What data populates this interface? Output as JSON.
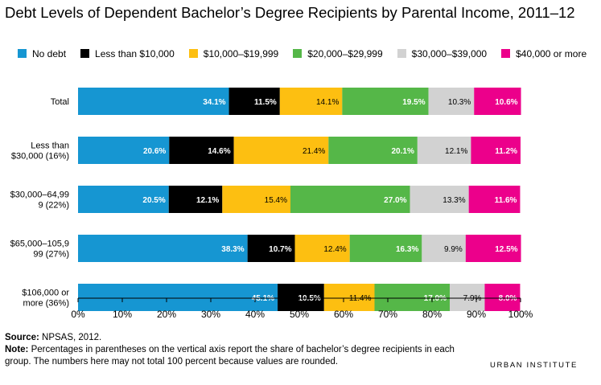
{
  "chart_data": {
    "type": "bar",
    "orientation": "horizontal",
    "stacked": true,
    "title": "Debt Levels of Dependent Bachelor’s Degree Recipients by Parental Income, 2011–12",
    "xlim": [
      0,
      100
    ],
    "x_ticks": [
      "0%",
      "10%",
      "20%",
      "30%",
      "40%",
      "50%",
      "60%",
      "70%",
      "80%",
      "90%",
      "100%"
    ],
    "legend_position": "top",
    "grid": false,
    "categories": [
      [
        "Total"
      ],
      [
        "Less than",
        "$30,000 (16%)"
      ],
      [
        "$30,000–64,99",
        "9 (22%)"
      ],
      [
        "$65,000–105,9",
        "99 (27%)"
      ],
      [
        "$106,000 or",
        "more (36%)"
      ]
    ],
    "series": [
      {
        "name": "No debt",
        "color": "#1696d2",
        "values": [
          34.1,
          20.6,
          20.5,
          38.3,
          45.1
        ],
        "labels": [
          "34.1%",
          "20.6%",
          "20.5%",
          "38.3%",
          "45.1%"
        ],
        "label_color": "#ffffff"
      },
      {
        "name": "Less than $10,000",
        "color": "#000000",
        "values": [
          11.5,
          14.6,
          12.1,
          10.7,
          10.5
        ],
        "labels": [
          "11.5%",
          "14.6%",
          "12.1%",
          "10.7%",
          "10.5%"
        ],
        "label_color": "#ffffff"
      },
      {
        "name": "$10,000–$19,999",
        "color": "#fdbf11",
        "values": [
          14.1,
          21.4,
          15.4,
          12.4,
          11.4
        ],
        "labels": [
          "14.1%",
          "21.4%",
          "15.4%",
          "12.4%",
          "11.4%"
        ],
        "label_color": "#000000"
      },
      {
        "name": "$20,000–$29,999",
        "color": "#55b748",
        "values": [
          19.5,
          20.1,
          27.0,
          16.3,
          17.0
        ],
        "labels": [
          "19.5%",
          "20.1%",
          "27.0%",
          "16.3%",
          "17.0%"
        ],
        "label_color": "#ffffff"
      },
      {
        "name": "$30,000–$39,000",
        "color": "#d2d2d2",
        "values": [
          10.3,
          12.1,
          13.3,
          9.9,
          7.9
        ],
        "labels": [
          "10.3%",
          "12.1%",
          "13.3%",
          "9.9%",
          "7.9%"
        ],
        "label_color": "#000000"
      },
      {
        "name": "$40,000 or more",
        "color": "#ec008b",
        "values": [
          10.6,
          11.2,
          11.6,
          12.5,
          8.0
        ],
        "labels": [
          "10.6%",
          "11.2%",
          "11.6%",
          "12.5%",
          "8.0%"
        ],
        "label_color": "#ffffff"
      }
    ]
  },
  "footer": {
    "source_label": "Source:",
    "source_text": "NPSAS, 2012.",
    "note_label": "Note:",
    "note_text": "Percentages in parentheses on the vertical axis report the share of bachelor’s degree recipients in each group. The numbers here may not total 100 percent because values are rounded."
  },
  "brand": "URBAN INSTITUTE"
}
